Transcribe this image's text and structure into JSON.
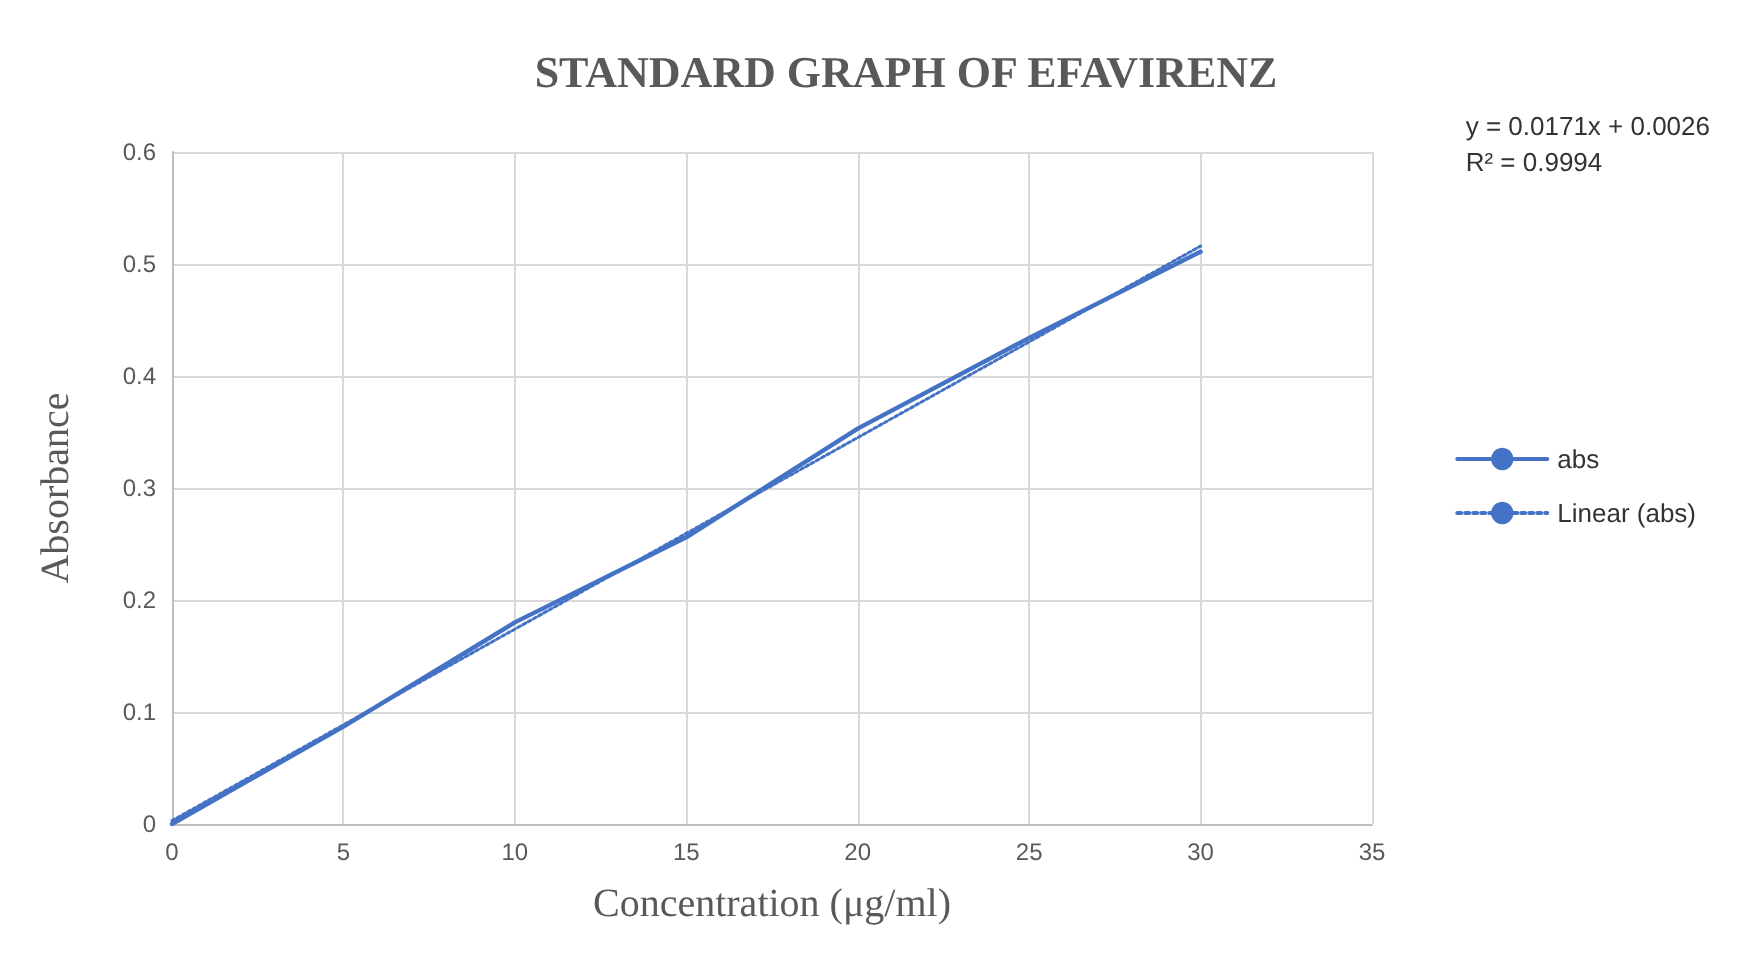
{
  "chart_data": {
    "type": "line",
    "title": "STANDARD GRAPH OF EFAVIRENZ",
    "xlabel": "Concentration (μg/ml)",
    "ylabel": "Absorbance",
    "annotations": [
      "y = 0.0171x + 0.0026",
      "R² = 0.9994"
    ],
    "x": [
      0,
      5,
      10,
      15,
      20,
      25,
      30
    ],
    "series": [
      {
        "name": "abs",
        "color": "#4472c4",
        "values": [
          0,
          0.087,
          0.18,
          0.256,
          0.353,
          0.434,
          0.511
        ],
        "line_style": "solid"
      },
      {
        "name": "Linear (abs)",
        "color": "#4472c4",
        "x": [
          0,
          30
        ],
        "values": [
          0.003,
          0.516
        ],
        "line_style": "dotted"
      }
    ],
    "xlim": [
      0,
      35
    ],
    "xticks": [
      0,
      5,
      10,
      15,
      20,
      25,
      30,
      35
    ],
    "ylim": [
      0,
      0.6
    ],
    "yticks": [
      0,
      0.1,
      0.2,
      0.3,
      0.4,
      0.5,
      0.6
    ],
    "grid": true,
    "legend": "right",
    "marker": "none"
  }
}
